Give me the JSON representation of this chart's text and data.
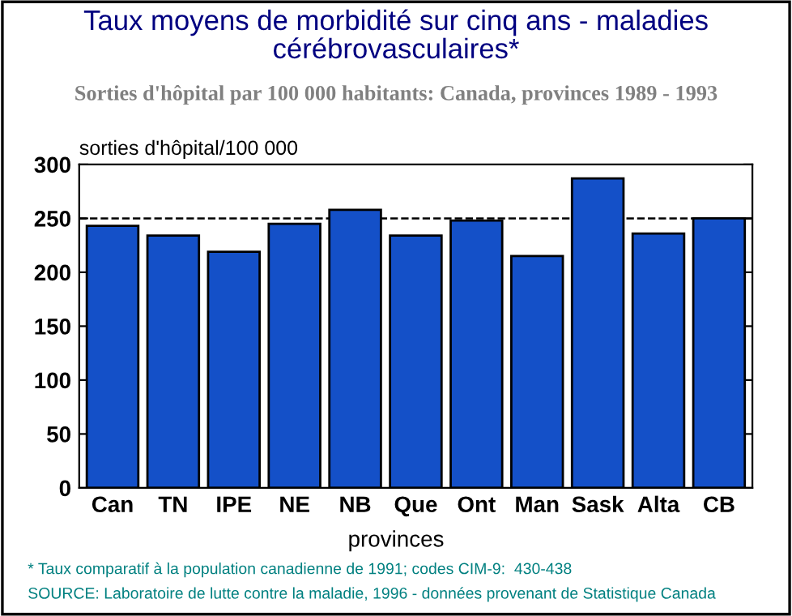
{
  "chart_data": {
    "type": "bar",
    "title": "Taux moyens de morbidité sur cinq ans - maladies\ncérébrovasculaires*",
    "subtitle": "Sorties d'hôpital par 100 000 habitants: Canada, provinces 1989 - 1993",
    "ylabel": "sorties d'hôpital/100 000",
    "xlabel": "provinces",
    "categories": [
      "Can",
      "TN",
      "IPE",
      "NE",
      "NB",
      "Que",
      "Ont",
      "Man",
      "Sask",
      "Alta",
      "CB"
    ],
    "values": [
      243,
      234,
      219,
      245,
      258,
      234,
      248,
      215,
      287,
      236,
      250
    ],
    "color": "#1450c8",
    "ylim": [
      0,
      300
    ],
    "yticks": [
      0,
      50,
      100,
      150,
      200,
      250,
      300
    ],
    "grid": false,
    "ref_lines": [
      {
        "axis": "y",
        "value": 250,
        "color": "#000000",
        "line_style": "dashed"
      }
    ],
    "annotations": [
      "* Taux comparatif à la population canadienne de 1991; codes CIM-9:  430-438",
      "SOURCE: Laboratoire de lutte contre la maladie, 1996 - données provenant de Statistique Canada"
    ]
  }
}
